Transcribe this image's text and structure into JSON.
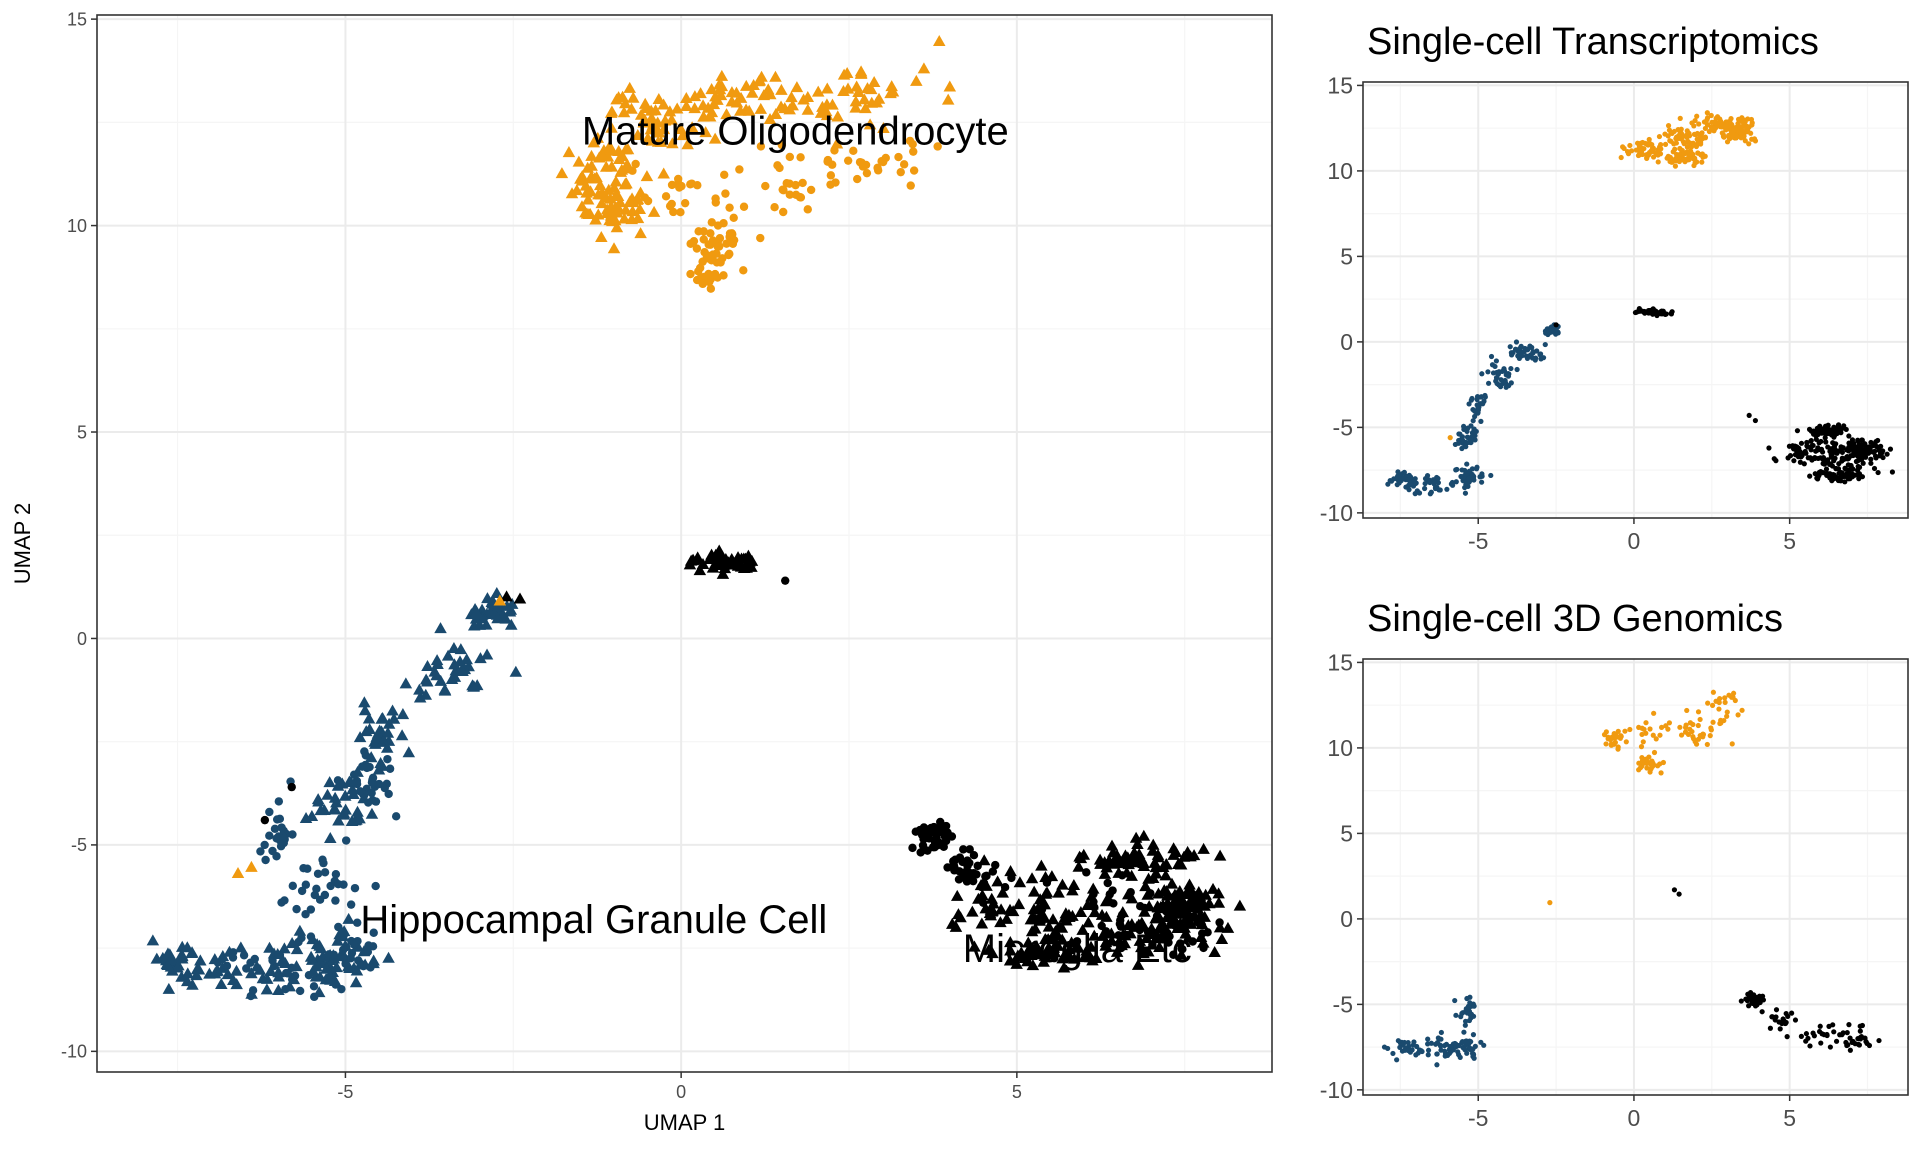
{
  "colors": {
    "granule": "#1a4a6e",
    "oligo": "#f09a10",
    "micro": "#000000",
    "grid_major": "#ebebeb",
    "grid_minor": "#f5f5f5",
    "frame": "#333333",
    "tick_text": "#4d4d4d"
  },
  "chart_data": [
    {
      "id": "integrated",
      "type": "scatter",
      "title": "",
      "xlabel": "UMAP 1",
      "ylabel": "UMAP 2",
      "xlim": [
        -8.7,
        8.8
      ],
      "ylim": [
        -10.5,
        15.1
      ],
      "xticks": [
        -5,
        0,
        5
      ],
      "yticks": [
        -10,
        -5,
        0,
        5,
        10,
        15
      ],
      "grid": true,
      "shapes": "circle = transcriptomics cells, triangle = 3D genomics cells",
      "cluster_labels": [
        {
          "text": "Mature Oligodendrocyte",
          "x": 1.7,
          "y": 12.3
        },
        {
          "text": "Hippocampal Granule Cell",
          "x": -1.3,
          "y": -6.8
        },
        {
          "text": "Microglia Etc",
          "x": 5.9,
          "y": -7.5
        }
      ],
      "clusters": [
        {
          "color_key": "oligo",
          "shape": "triangle",
          "n": 230,
          "seed": 11,
          "regions": [
            [
              -1.1,
              11.2,
              0.5,
              0.8
            ],
            [
              -0.3,
              12.5,
              0.6,
              0.6
            ],
            [
              1.0,
              13.1,
              0.8,
              0.5
            ],
            [
              2.6,
              13.0,
              1.0,
              0.7
            ],
            [
              -1.0,
              10.5,
              0.4,
              0.6
            ]
          ]
        },
        {
          "color_key": "oligo",
          "shape": "circle",
          "n": 130,
          "seed": 12,
          "regions": [
            [
              0.2,
              11.0,
              0.6,
              0.8
            ],
            [
              0.5,
              9.5,
              0.3,
              0.5
            ],
            [
              1.6,
              11.0,
              0.6,
              0.9
            ],
            [
              0.4,
              8.7,
              0.2,
              0.2
            ],
            [
              2.8,
              11.6,
              0.8,
              0.5
            ]
          ]
        },
        {
          "color_key": "micro",
          "shape": "triangle",
          "n": 330,
          "seed": 21,
          "regions": [
            [
              5.2,
              -6.5,
              1.1,
              0.7
            ],
            [
              6.7,
              -7.0,
              1.2,
              0.7
            ],
            [
              7.5,
              -6.5,
              0.4,
              0.5
            ],
            [
              5.5,
              -7.6,
              0.8,
              0.3
            ],
            [
              6.8,
              -5.4,
              0.8,
              0.4
            ]
          ]
        },
        {
          "color_key": "micro",
          "shape": "circle",
          "n": 150,
          "seed": 22,
          "regions": [
            [
              3.8,
              -4.8,
              0.2,
              0.35
            ],
            [
              4.3,
              -5.6,
              0.4,
              0.4
            ],
            [
              6.2,
              -6.6,
              1.0,
              0.8
            ],
            [
              7.3,
              -7.0,
              0.6,
              0.6
            ]
          ]
        },
        {
          "color_key": "micro",
          "shape": "triangle",
          "n": 45,
          "seed": 23,
          "regions": [
            [
              0.6,
              1.85,
              0.5,
              0.18
            ]
          ]
        },
        {
          "color_key": "granule",
          "shape": "triangle",
          "n": 260,
          "seed": 31,
          "regions": [
            [
              -6.3,
              -8.0,
              0.8,
              0.6
            ],
            [
              -7.4,
              -7.9,
              0.5,
              0.4
            ],
            [
              -5.2,
              -7.7,
              0.5,
              0.6
            ],
            [
              -3.5,
              -0.8,
              0.6,
              0.6
            ],
            [
              -4.5,
              -2.3,
              0.4,
              0.7
            ],
            [
              -5.1,
              -4.0,
              0.4,
              0.6
            ],
            [
              -2.8,
              0.6,
              0.3,
              0.3
            ]
          ]
        },
        {
          "color_key": "granule",
          "shape": "circle",
          "n": 140,
          "seed": 32,
          "regions": [
            [
              -6.0,
              -8.0,
              0.9,
              0.7
            ],
            [
              -5.3,
              -6.0,
              0.5,
              0.7
            ],
            [
              -4.6,
              -3.6,
              0.3,
              0.6
            ],
            [
              -6.0,
              -4.8,
              0.2,
              0.6
            ],
            [
              -4.9,
              -7.8,
              0.3,
              0.7
            ]
          ]
        }
      ],
      "points": [
        {
          "color_key": "micro",
          "shape": "triangle",
          "x": -2.4,
          "y": 0.95
        },
        {
          "color_key": "micro",
          "shape": "triangle",
          "x": -2.6,
          "y": 1.0
        },
        {
          "color_key": "oligo",
          "shape": "triangle",
          "x": -2.7,
          "y": 0.9
        },
        {
          "color_key": "oligo",
          "shape": "triangle",
          "x": -6.6,
          "y": -5.7
        },
        {
          "color_key": "oligo",
          "shape": "triangle",
          "x": -6.4,
          "y": -5.55
        },
        {
          "color_key": "micro",
          "shape": "circle",
          "x": 1.55,
          "y": 1.4
        },
        {
          "color_key": "micro",
          "shape": "circle",
          "x": -6.2,
          "y": -4.4
        },
        {
          "color_key": "micro",
          "shape": "circle",
          "x": -5.8,
          "y": -3.6
        }
      ]
    },
    {
      "id": "transcriptomics",
      "type": "scatter",
      "title": "Single-cell Transcriptomics",
      "xlabel": "",
      "ylabel": "",
      "xlim": [
        -8.7,
        8.8
      ],
      "ylim": [
        -10.3,
        15.2
      ],
      "xticks": [
        -5,
        0,
        5
      ],
      "yticks": [
        -10,
        -5,
        0,
        5,
        10,
        15
      ],
      "grid": true,
      "clusters": [
        {
          "color_key": "oligo",
          "shape": "circle",
          "n": 300,
          "seed": 41,
          "regions": [
            [
              0.4,
              11.2,
              0.6,
              0.6
            ],
            [
              1.6,
              12.0,
              0.8,
              0.7
            ],
            [
              2.8,
              12.7,
              0.8,
              0.6
            ],
            [
              3.3,
              12.3,
              0.5,
              0.5
            ],
            [
              1.6,
              10.8,
              0.5,
              0.4
            ]
          ]
        },
        {
          "color_key": "micro",
          "shape": "circle",
          "n": 330,
          "seed": 42,
          "regions": [
            [
              5.5,
              -6.5,
              0.9,
              0.6
            ],
            [
              6.7,
              -6.7,
              0.9,
              0.8
            ],
            [
              7.4,
              -6.3,
              0.5,
              0.5
            ],
            [
              6.3,
              -5.2,
              0.6,
              0.3
            ],
            [
              6.5,
              -7.8,
              0.7,
              0.3
            ]
          ]
        },
        {
          "color_key": "micro",
          "shape": "circle",
          "n": 40,
          "seed": 43,
          "regions": [
            [
              0.6,
              1.75,
              0.45,
              0.15
            ]
          ]
        },
        {
          "color_key": "granule",
          "shape": "circle",
          "n": 280,
          "seed": 44,
          "regions": [
            [
              -6.5,
              -8.3,
              0.8,
              0.6
            ],
            [
              -7.5,
              -8.0,
              0.4,
              0.3
            ],
            [
              -5.3,
              -7.9,
              0.4,
              0.5
            ],
            [
              -3.4,
              -0.6,
              0.5,
              0.5
            ],
            [
              -4.3,
              -2.0,
              0.4,
              0.7
            ],
            [
              -5.0,
              -3.8,
              0.3,
              0.7
            ],
            [
              -5.4,
              -5.6,
              0.3,
              0.5
            ],
            [
              -2.6,
              0.7,
              0.2,
              0.2
            ]
          ]
        }
      ],
      "points": [
        {
          "color_key": "micro",
          "shape": "circle",
          "x": 3.7,
          "y": -4.3
        },
        {
          "color_key": "micro",
          "shape": "circle",
          "x": 3.9,
          "y": -4.6
        },
        {
          "color_key": "oligo",
          "shape": "circle",
          "x": -5.9,
          "y": -5.6
        },
        {
          "color_key": "micro",
          "shape": "circle",
          "x": -2.5,
          "y": 1.0
        }
      ]
    },
    {
      "id": "genomics",
      "type": "scatter",
      "title": "Single-cell 3D Genomics",
      "xlabel": "",
      "ylabel": "",
      "xlim": [
        -8.7,
        8.8
      ],
      "ylim": [
        -10.3,
        15.2
      ],
      "xticks": [
        -5,
        0,
        5
      ],
      "yticks": [
        -10,
        -5,
        0,
        5,
        10,
        15
      ],
      "grid": true,
      "clusters": [
        {
          "color_key": "oligo",
          "shape": "circle",
          "n": 130,
          "seed": 51,
          "regions": [
            [
              0.4,
              10.8,
              0.7,
              0.7
            ],
            [
              0.5,
              9.0,
              0.3,
              0.4
            ],
            [
              2.0,
              11.0,
              0.8,
              0.7
            ],
            [
              3.0,
              12.3,
              0.6,
              0.8
            ],
            [
              -0.7,
              10.5,
              0.3,
              0.4
            ]
          ]
        },
        {
          "color_key": "micro",
          "shape": "circle",
          "n": 100,
          "seed": 52,
          "regions": [
            [
              3.9,
              -4.7,
              0.25,
              0.3
            ],
            [
              4.7,
              -5.8,
              0.5,
              0.5
            ],
            [
              6.1,
              -6.7,
              0.7,
              0.6
            ],
            [
              7.2,
              -7.0,
              0.6,
              0.5
            ]
          ]
        },
        {
          "color_key": "granule",
          "shape": "circle",
          "n": 120,
          "seed": 53,
          "regions": [
            [
              -6.0,
              -7.5,
              0.6,
              0.6
            ],
            [
              -5.4,
              -5.3,
              0.3,
              0.7
            ],
            [
              -5.3,
              -7.5,
              0.3,
              0.5
            ],
            [
              -7.2,
              -7.6,
              0.5,
              0.4
            ]
          ]
        }
      ],
      "points": [
        {
          "color_key": "oligo",
          "shape": "circle",
          "x": -2.7,
          "y": 0.95
        },
        {
          "color_key": "micro",
          "shape": "circle",
          "x": 1.3,
          "y": 1.7
        },
        {
          "color_key": "micro",
          "shape": "circle",
          "x": 1.45,
          "y": 1.45
        }
      ]
    }
  ]
}
